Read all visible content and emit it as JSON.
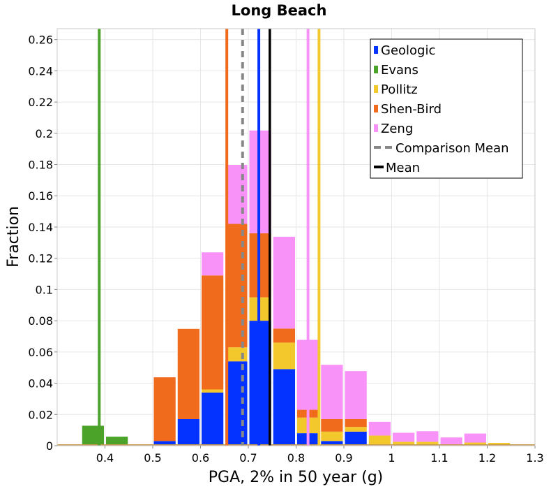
{
  "chart_data": {
    "type": "bar",
    "title": "Long Beach",
    "xlabel": "PGA, 2% in 50 year (g)",
    "ylabel": "Fraction",
    "xlim": [
      0.3,
      1.3
    ],
    "ylim": [
      0,
      0.267
    ],
    "bin_width": 0.05,
    "x_ticks": [
      0.4,
      0.5,
      0.6,
      0.7,
      0.8,
      0.9,
      1,
      1.1,
      1.2,
      1.3
    ],
    "y_ticks": [
      0,
      0.02,
      0.04,
      0.06,
      0.08,
      0.1,
      0.12,
      0.14,
      0.16,
      0.18,
      0.2,
      0.22,
      0.24,
      0.26
    ],
    "grid": true,
    "legend_position": "top-right",
    "bin_centers": [
      0.325,
      0.375,
      0.425,
      0.475,
      0.525,
      0.575,
      0.625,
      0.675,
      0.725,
      0.775,
      0.825,
      0.875,
      0.925,
      0.975,
      1.025,
      1.075,
      1.125,
      1.175,
      1.225,
      1.275
    ],
    "series": [
      {
        "name": "Geologic",
        "color": "#0433ff",
        "values": [
          0,
          0,
          0,
          0,
          0.003,
          0.017,
          0.034,
          0.054,
          0.08,
          0.049,
          0.008,
          0.003,
          0.009,
          0.0005,
          0,
          0,
          0,
          0,
          0,
          0
        ]
      },
      {
        "name": "Evans",
        "color": "#4ba329",
        "values": [
          0,
          0.013,
          0.006,
          0,
          0,
          0,
          0,
          0,
          0,
          0,
          0,
          0,
          0,
          0,
          0,
          0,
          0,
          0,
          0,
          0
        ]
      },
      {
        "name": "Pollitz",
        "color": "#f3c82d",
        "values": [
          0,
          0,
          0,
          0,
          0,
          0,
          0.002,
          0.009,
          0.015,
          0.017,
          0.01,
          0.006,
          0.003,
          0.006,
          0.0025,
          0.0025,
          0.0005,
          0.002,
          0.002,
          0
        ]
      },
      {
        "name": "Shen-Bird",
        "color": "#f06b1c",
        "values": [
          0,
          0,
          0,
          0.001,
          0.041,
          0.058,
          0.073,
          0.079,
          0.041,
          0.009,
          0.005,
          0.008,
          0.005,
          0,
          0,
          0,
          0,
          0,
          0,
          0
        ]
      },
      {
        "name": "Zeng",
        "color": "#f992f8",
        "values": [
          0,
          0,
          0,
          0,
          0,
          0,
          0.015,
          0.038,
          0.066,
          0.059,
          0.045,
          0.035,
          0.031,
          0.009,
          0.006,
          0.007,
          0.005,
          0.006,
          0,
          0
        ]
      }
    ],
    "reference_lines": [
      {
        "name": "Evans",
        "x": 0.388,
        "color": "#4ba329",
        "style": "solid"
      },
      {
        "name": "Shen-Bird",
        "x": 0.655,
        "color": "#f06b1c",
        "style": "solid"
      },
      {
        "name": "Comparison Mean",
        "x": 0.688,
        "color": "#888888",
        "style": "dashed"
      },
      {
        "name": "Geologic",
        "x": 0.722,
        "color": "#0433ff",
        "style": "solid"
      },
      {
        "name": "Mean",
        "x": 0.745,
        "color": "#000000",
        "style": "solid"
      },
      {
        "name": "Zeng",
        "x": 0.825,
        "color": "#f992f8",
        "style": "solid"
      },
      {
        "name": "Pollitz",
        "x": 0.848,
        "color": "#f3c82d",
        "style": "solid"
      }
    ],
    "legend": [
      {
        "label": "Geologic",
        "color": "#0433ff",
        "kind": "box"
      },
      {
        "label": "Evans",
        "color": "#4ba329",
        "kind": "box"
      },
      {
        "label": "Pollitz",
        "color": "#f3c82d",
        "kind": "box"
      },
      {
        "label": "Shen-Bird",
        "color": "#f06b1c",
        "kind": "box"
      },
      {
        "label": "Zeng",
        "color": "#f992f8",
        "kind": "box"
      },
      {
        "label": "Comparison Mean",
        "color": "#888888",
        "kind": "dashed"
      },
      {
        "label": "Mean",
        "color": "#000000",
        "kind": "solid"
      }
    ]
  }
}
